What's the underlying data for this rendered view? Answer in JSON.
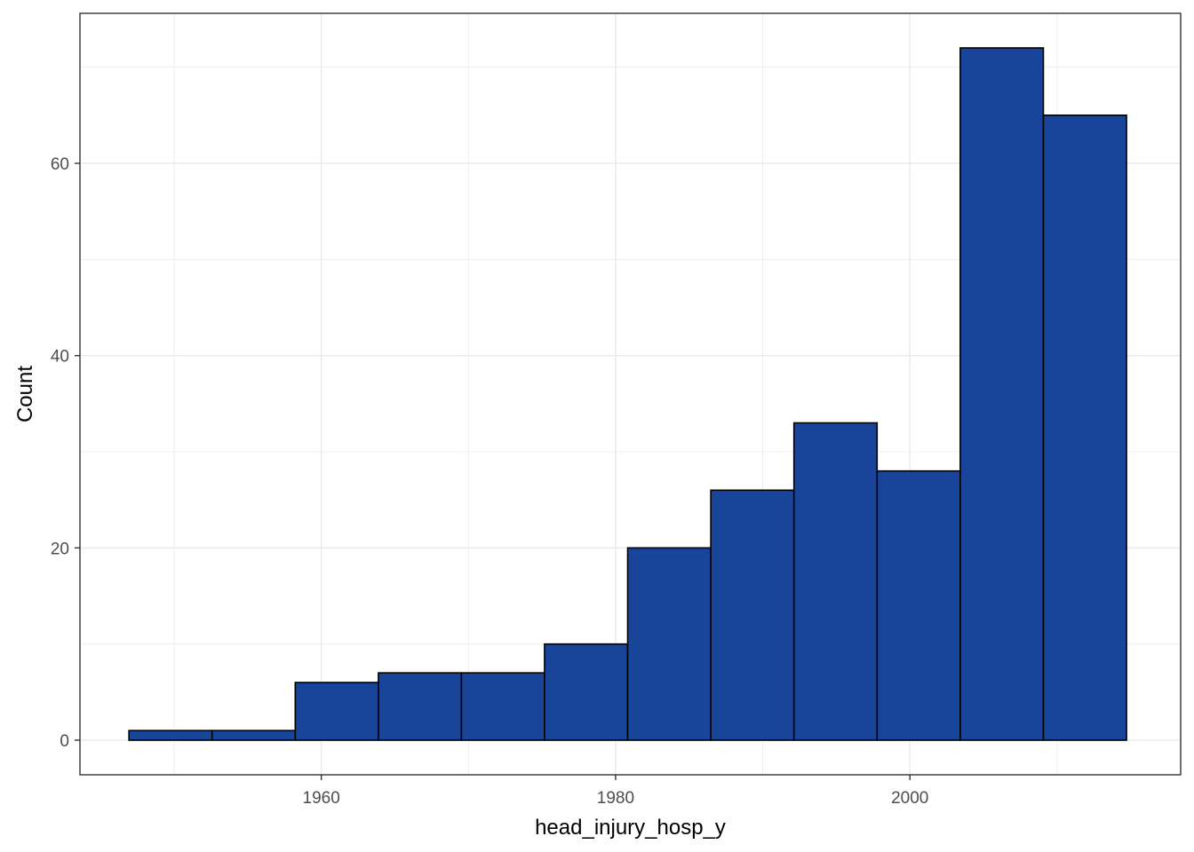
{
  "chart_data": {
    "type": "bar",
    "subtype": "histogram",
    "title": "",
    "xlabel": "head_injury_hosp_y",
    "ylabel": "Count",
    "xlim": [
      1943.6,
      2018.4
    ],
    "ylim": [
      -3.6,
      75.6
    ],
    "x_ticks": [
      1960,
      1980,
      2000
    ],
    "x_tick_labels": [
      "1960",
      "1980",
      "2000"
    ],
    "y_ticks": [
      0,
      20,
      40,
      60
    ],
    "y_tick_labels": [
      "0",
      "20",
      "40",
      "60"
    ],
    "bins": [
      {
        "x0": 1946.93,
        "x1": 1952.58,
        "count": 1
      },
      {
        "x0": 1952.58,
        "x1": 1958.23,
        "count": 1
      },
      {
        "x0": 1958.23,
        "x1": 1963.88,
        "count": 6
      },
      {
        "x0": 1963.88,
        "x1": 1969.52,
        "count": 7
      },
      {
        "x0": 1969.52,
        "x1": 1975.17,
        "count": 7
      },
      {
        "x0": 1975.17,
        "x1": 1980.82,
        "count": 10
      },
      {
        "x0": 1980.82,
        "x1": 1986.47,
        "count": 20
      },
      {
        "x0": 1986.47,
        "x1": 1992.12,
        "count": 26
      },
      {
        "x0": 1992.12,
        "x1": 1997.77,
        "count": 33
      },
      {
        "x0": 1997.77,
        "x1": 2003.42,
        "count": 28
      },
      {
        "x0": 2003.42,
        "x1": 2009.07,
        "count": 72
      },
      {
        "x0": 2009.07,
        "x1": 2014.72,
        "count": 65
      }
    ],
    "grid": true,
    "fill_color": "#18449A",
    "edge_color": "#000000",
    "grid_color": "#EBEBEB",
    "panel_border_color": "#333333"
  }
}
